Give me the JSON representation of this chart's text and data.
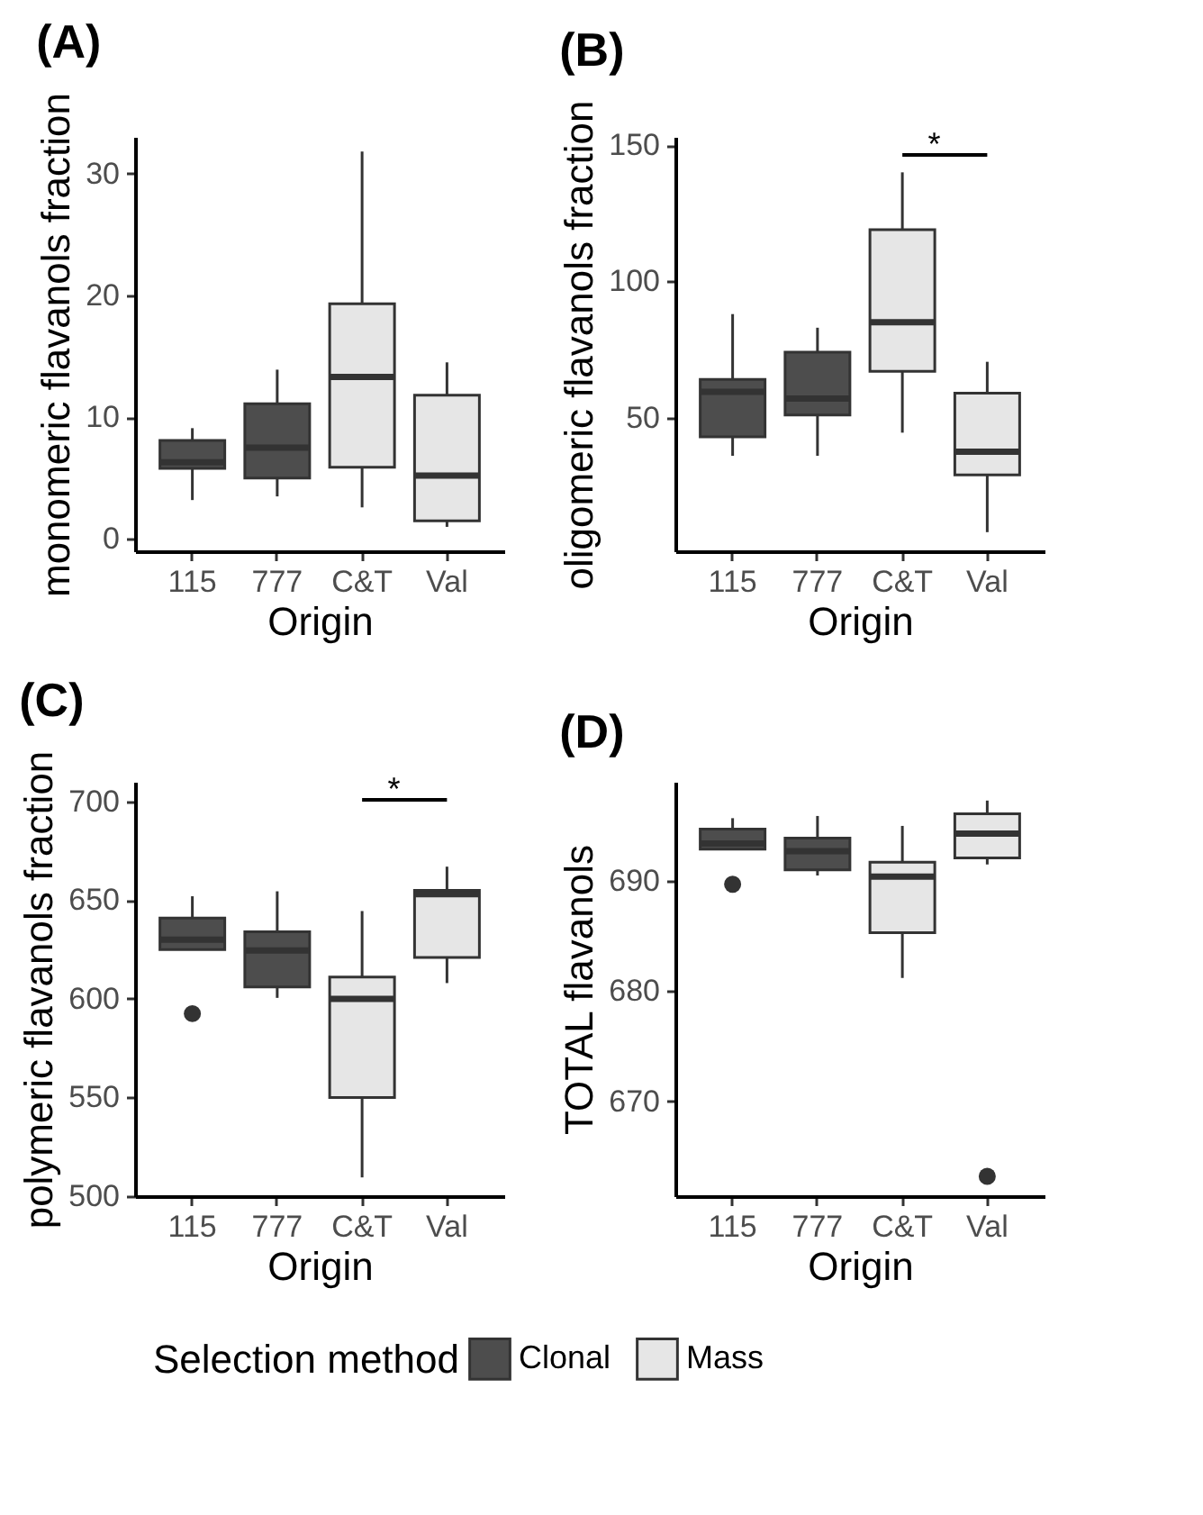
{
  "chart_data": [
    {
      "type": "box",
      "title": "(A)",
      "xlabel": "Origin",
      "ylabel": "monomeric flavanols fraction",
      "legend_title": "Selection method",
      "legend": "bottom",
      "grid": false,
      "categories": [
        "115",
        "777",
        "C&T",
        "Val"
      ],
      "ylim": [
        -1,
        33
      ],
      "yticks": [
        0,
        10,
        20,
        30
      ],
      "series": [
        {
          "name": "Clonal",
          "color": "#4d4d4d",
          "boxes": [
            {
              "low": 3.2,
              "q1": 5.8,
              "median": 6.3,
              "q3": 8.1,
              "high": 9.1
            },
            {
              "low": 3.5,
              "q1": 5.0,
              "median": 7.5,
              "q3": 11.1,
              "high": 13.9
            },
            null,
            null
          ]
        },
        {
          "name": "Mass",
          "color": "#e6e6e6",
          "boxes": [
            null,
            null,
            {
              "low": 2.6,
              "q1": 5.9,
              "median": 13.3,
              "q3": 19.3,
              "high": 31.8
            },
            {
              "low": 1.0,
              "q1": 1.5,
              "median": 5.2,
              "q3": 11.8,
              "high": 14.5
            }
          ]
        }
      ]
    },
    {
      "type": "box",
      "title": "(B)",
      "xlabel": "Origin",
      "ylabel": "oligomeric flavanols fraction",
      "grid": false,
      "categories": [
        "115",
        "777",
        "C&T",
        "Val"
      ],
      "ylim": [
        1,
        153
      ],
      "yticks": [
        50,
        100,
        150
      ],
      "annotations": [
        "*"
      ],
      "series": [
        {
          "name": "Clonal",
          "color": "#4d4d4d",
          "boxes": [
            {
              "low": 36,
              "q1": 43,
              "median": 59.5,
              "q3": 64,
              "high": 88
            },
            {
              "low": 36,
              "q1": 51,
              "median": 57,
              "q3": 74,
              "high": 83
            },
            null,
            null
          ]
        },
        {
          "name": "Mass",
          "color": "#e6e6e6",
          "boxes": [
            null,
            null,
            {
              "low": 44.5,
              "q1": 67,
              "median": 85,
              "q3": 119,
              "high": 140
            },
            {
              "low": 8,
              "q1": 29,
              "median": 37.5,
              "q3": 59,
              "high": 70.5
            }
          ]
        }
      ]
    },
    {
      "type": "box",
      "title": "(C)",
      "xlabel": "Origin",
      "ylabel": "polymeric flavanols fraction",
      "grid": false,
      "categories": [
        "115",
        "777",
        "C&T",
        "Val"
      ],
      "ylim": [
        500,
        710
      ],
      "yticks": [
        500,
        550,
        600,
        650,
        700
      ],
      "annotations": [
        "*"
      ],
      "series": [
        {
          "name": "Clonal",
          "color": "#4d4d4d",
          "boxes": [
            {
              "low": 625,
              "q1": 625,
              "median": 630,
              "q3": 641,
              "high": 652,
              "outliers": [
                592.5
              ]
            },
            {
              "low": 600.5,
              "q1": 606,
              "median": 624.5,
              "q3": 634,
              "high": 654.5
            },
            null,
            null
          ]
        },
        {
          "name": "Mass",
          "color": "#e6e6e6",
          "boxes": [
            null,
            null,
            {
              "low": 509.5,
              "q1": 550,
              "median": 600,
              "q3": 611,
              "high": 644.5
            },
            {
              "low": 608,
              "q1": 621,
              "median": 653,
              "q3": 655,
              "high": 667
            }
          ]
        }
      ]
    },
    {
      "type": "box",
      "title": "(D)",
      "xlabel": "Origin",
      "ylabel": "TOTAL flavanols",
      "grid": false,
      "categories": [
        "115",
        "777",
        "C&T",
        "Val"
      ],
      "ylim": [
        661.4,
        699
      ],
      "yticks": [
        670,
        680,
        690
      ],
      "series": [
        {
          "name": "Clonal",
          "color": "#4d4d4d",
          "boxes": [
            {
              "low": 692.9,
              "q1": 692.9,
              "median": 693.4,
              "q3": 694.7,
              "high": 695.7,
              "outliers": [
                689.7
              ]
            },
            {
              "low": 690.5,
              "q1": 691,
              "median": 692.7,
              "q3": 693.9,
              "high": 695.9
            },
            null,
            null
          ]
        },
        {
          "name": "Mass",
          "color": "#e6e6e6",
          "boxes": [
            null,
            null,
            {
              "low": 681.2,
              "q1": 685.3,
              "median": 690.4,
              "q3": 691.7,
              "high": 695
            },
            {
              "low": 691.5,
              "q1": 692.1,
              "median": 694.3,
              "q3": 696.1,
              "high": 697.3,
              "outliers": [
                663.2
              ]
            }
          ]
        }
      ]
    }
  ]
}
